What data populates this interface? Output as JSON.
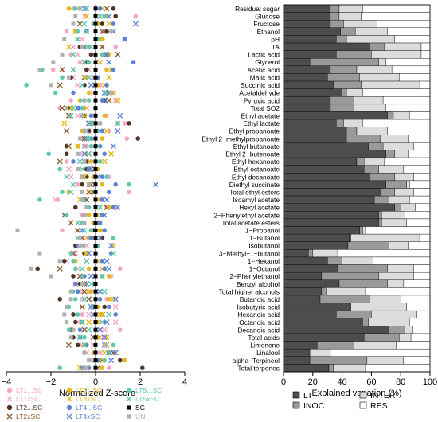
{
  "chart_data": [
    {
      "type": "scatter",
      "title": "",
      "xlabel": "Normalized Z-score",
      "ylabel": "",
      "xlim": [
        -4,
        4
      ],
      "xticks": [
        -4,
        -2,
        0,
        2,
        4
      ],
      "reference_line": 0,
      "rows": [
        "Residual sugar",
        "Glucose",
        "Fructose",
        "Ethanol",
        "pH",
        "TA",
        "Lactic acid",
        "Glycerol",
        "Acetic acid",
        "Malic acid",
        "Succinic acid",
        "Acetaldehyde",
        "Pyruvic acid",
        "Total SO2",
        "Ethyl acetate",
        "Ethyl lactate",
        "Ethyl propanoate",
        "Ethyl 2-methylpropanoate",
        "Ethyl butanoate",
        "Ethyl 2-butenoate",
        "Ethyl hexanoate",
        "Ethyl octanoate",
        "Ethyl decanoate",
        "Diethyl succinate",
        "Total ethyl esters",
        "Isoamyl acetate",
        "Hexyl acetate",
        "2-Phenylethyl acetate",
        "Total acetate esters",
        "1-Propanol",
        "1-Butanol",
        "Isobutanol",
        "3-Methyl-1-butanol",
        "1-Hexanol",
        "1-Octanol",
        "2-Phenylethanol",
        "Benzyl alcohol",
        "Total higher alcohols",
        "Butanoic acid",
        "Isobutyric acid",
        "Hexanoic acid",
        "Octanoic acid",
        "Decanoic acid",
        "Total acids",
        "Limonene",
        "Linalool",
        "alpha-Terpineol",
        "Total terpenes"
      ],
      "series": [
        {
          "name": "LT1...SC",
          "color": "#f4a6c4",
          "marker": "circle",
          "values": [
            -1.0,
            1.8,
            0.8,
            -1.3,
            0.3,
            0.9,
            -1.1,
            -0.7,
            -1.9,
            -0.1,
            0.2,
            0.8,
            -1.1,
            -1.6,
            0.5,
            1.3,
            0.6,
            1.4,
            -0.4,
            -0.7,
            -1.3,
            -0.3,
            0.6,
            -0.8,
            1.5,
            -1.7,
            0.5,
            -0.6,
            -0.1,
            -1.5,
            0.3,
            -0.5,
            -1.0,
            0.3,
            1.1,
            0.7,
            -0.1,
            -0.3,
            0.5,
            -1.3,
            -0.6,
            -0.7,
            1.1,
            0.4,
            -0.7,
            0.2,
            -0.2,
            0.6
          ]
        },
        {
          "name": "LT1xSC",
          "color": "#f4a6c4",
          "marker": "x",
          "values": [
            -0.8,
            -0.5,
            0.2,
            0.4,
            -0.6,
            -1.0,
            -0.8,
            -0.4,
            -0.3,
            -1.0,
            -0.8,
            -0.1,
            0.9,
            -0.4,
            -0.8,
            1.0,
            -0.3,
            -0.6,
            -0.5,
            -0.3,
            -0.4,
            -1.2,
            -1.1,
            -0.3,
            -0.6,
            -1.8,
            0.9,
            -0.5,
            -0.6,
            -0.8,
            -0.4,
            -0.4,
            -0.9,
            -1.3,
            -0.8,
            -0.7,
            -0.9,
            -0.6,
            -0.6,
            0.9,
            -0.3,
            0.9,
            0.4,
            0.2,
            -0.1,
            -0.4,
            0.1,
            -0.5
          ]
        },
        {
          "name": "LT2...SC",
          "color": "#4d3425",
          "marker": "circle",
          "values": [
            0.8,
            0.9,
            0.3,
            0.5,
            0.3,
            -0.7,
            -0.2,
            -0.4,
            -0.4,
            -1.1,
            -0.5,
            0.0,
            0.4,
            -1.2,
            -0.5,
            1.5,
            -0.3,
            1.9,
            -1.3,
            -1.3,
            -0.4,
            -0.4,
            -0.4,
            -0.6,
            -1.2,
            -0.5,
            -0.9,
            -0.5,
            -0.6,
            -0.1,
            0.3,
            -0.9,
            -0.5,
            -1.4,
            -2.6,
            -1.0,
            -0.7,
            -0.8,
            -1.6,
            0.4,
            -1.0,
            -0.9,
            -1.1,
            -1.0,
            -0.8,
            0.6,
            1.1,
            2.1
          ]
        },
        {
          "name": "LT2xSC",
          "color": "#8b5a2b",
          "marker": "x",
          "values": [
            0.5,
            0.2,
            -0.7,
            0.3,
            -0.8,
            0.3,
            1.0,
            -0.5,
            -1.5,
            -0.5,
            -1.6,
            0.6,
            0.6,
            -1.5,
            -1.2,
            -0.3,
            -1.3,
            -0.5,
            -1.2,
            -0.3,
            -1.6,
            -0.2,
            -0.6,
            -0.2,
            -0.3,
            -0.4,
            0.5,
            -1.4,
            -1.1,
            -0.8,
            -0.6,
            -0.6,
            -1.0,
            -0.4,
            -1.6,
            -0.7,
            -0.5,
            -0.5,
            -0.3,
            -0.6,
            0.3,
            -0.6,
            -0.5,
            -0.1,
            -1.2,
            0.8,
            0.3,
            0.1
          ]
        },
        {
          "name": "LT3...SC",
          "color": "#e6b818",
          "marker": "circle",
          "values": [
            -1.2,
            0.5,
            0.1,
            -0.9,
            0.3,
            -0.5,
            0.6,
            -0.3,
            0.5,
            -0.4,
            0.1,
            -0.3,
            -0.7,
            -0.5,
            0.4,
            -0.2,
            -0.6,
            0.3,
            -0.8,
            -0.4,
            -0.2,
            0.1,
            -0.1,
            0.3,
            -1.2,
            0.2,
            0.6,
            -0.3,
            -0.1,
            0.2,
            -0.3,
            -0.7,
            -0.4,
            -0.9,
            -0.3,
            0.6,
            -0.5,
            -0.2,
            0.6,
            0.1,
            0.3,
            0.1,
            -1.0,
            0.1,
            -0.5,
            -0.1,
            1.3,
            0.3
          ]
        },
        {
          "name": "LT3xSC",
          "color": "#e6b818",
          "marker": "x",
          "values": [
            0.3,
            -0.4,
            0.6,
            -0.9,
            0.3,
            -1.2,
            0.4,
            0.2,
            0.7,
            0.6,
            0.4,
            0.8,
            1.0,
            -1.1,
            -0.5,
            -1.4,
            0.5,
            -0.4,
            -0.8,
            0.7,
            0.4,
            -0.6,
            -0.5,
            -0.3,
            -0.2,
            -0.7,
            0.2,
            0.1,
            0.1,
            0.3,
            -0.2,
            0.8,
            -0.4,
            0.1,
            0.3,
            0.3,
            -0.6,
            -0.3,
            0.8,
            -0.1,
            0.2,
            -0.3,
            0.2,
            0.5,
            0.5,
            0.4,
            0.2,
            -0.7
          ]
        },
        {
          "name": "LT4...SC",
          "color": "#5b84d6",
          "marker": "circle",
          "values": [
            0.2,
            0.4,
            0.8,
            -0.4,
            1.3,
            -0.6,
            0.5,
            1.7,
            0.8,
            0.1,
            0.5,
            -1.0,
            0.3,
            -0.8,
            -0.2,
            0.2,
            0.3,
            -0.2,
            0.2,
            0.4,
            -1.0,
            -0.3,
            0.3,
            0.9,
            0.6,
            0.3,
            0.8,
            0.3,
            0.2,
            0.4,
            -0.2,
            -0.8,
            0.7,
            0.3,
            0.4,
            -0.5,
            -0.9,
            -0.8,
            0.2,
            0.6,
            0.9,
            0.4,
            -0.7,
            -0.7,
            -0.4,
            0.6,
            0.1,
            -0.3
          ]
        },
        {
          "name": "LT4xSC",
          "color": "#5b84d6",
          "marker": "x",
          "values": [
            -0.5,
            0.6,
            1.8,
            0.8,
            1.3,
            -0.5,
            0.5,
            0.6,
            -1.0,
            -0.3,
            -0.2,
            0.4,
            0.4,
            -0.8,
            1.1,
            -0.3,
            1.0,
            -0.4,
            0.8,
            -0.5,
            -0.5,
            -0.3,
            0.1,
            2.7,
            -0.1,
            0.5,
            1.0,
            0.4,
            0.2,
            -0.6,
            0.2,
            0.7,
            -0.3,
            0.5,
            0.6,
            -0.2,
            -0.4,
            0.2,
            0.9,
            -0.2,
            -0.1,
            0.5,
            0.2,
            0.4,
            0.4,
            0.9,
            0.7,
            -0.6
          ]
        },
        {
          "name": "LT5...SC",
          "color": "#5ec9b0",
          "marker": "circle",
          "values": [
            -0.9,
            0.4,
            -0.1,
            -0.8,
            0.1,
            -0.3,
            0.3,
            -0.3,
            -2.4,
            -1.5,
            -3.1,
            -1.8,
            -0.3,
            -0.6,
            -0.6,
            1.0,
            0.1,
            -0.3,
            -0.2,
            -2.1,
            0.2,
            -1.6,
            0.5,
            1.5,
            -1.5,
            -2.5,
            -0.3,
            -1.3,
            -0.6,
            -0.2,
            0.8,
            0.1,
            -1.1,
            -1.0,
            -0.9,
            0.3,
            -0.1,
            -1.0,
            -0.9,
            -1.2,
            -0.8,
            -0.6,
            -1.2,
            -0.5,
            0.8,
            -0.5,
            0.4,
            -1.6
          ]
        },
        {
          "name": "LT5xSC",
          "color": "#5ec9b0",
          "marker": "x",
          "values": [
            -0.4,
            0.2,
            -0.5,
            -0.4,
            -0.8,
            -0.2,
            -1.0,
            -0.5,
            -1.0,
            -0.3,
            -0.6,
            0.5,
            -0.6,
            -1.0,
            -1.1,
            -0.2,
            -0.4,
            -0.3,
            0.1,
            -0.3,
            -0.7,
            -0.6,
            -1.3,
            -1.0,
            -1.1,
            -0.5,
            0.2,
            -0.5,
            -0.8,
            -0.5,
            -0.8,
            -0.6,
            0.8,
            -0.4,
            -0.6,
            -0.6,
            -0.2,
            0.4,
            -0.5,
            -0.1,
            0.6,
            0.3,
            -0.3,
            -0.7,
            -0.5,
            0.6,
            0.0,
            -0.4
          ]
        },
        {
          "name": "UN",
          "color": "#b0b0b0",
          "marker": "square",
          "values": [
            -0.7,
            -0.9,
            -1.0,
            0.7,
            -1.4,
            -0.6,
            -1.5,
            -1.9,
            -2.5,
            -1.2,
            -2.0,
            0.7,
            -0.5,
            -1.3,
            -0.6,
            0.2,
            -0.5,
            -0.7,
            -0.5,
            -0.8,
            -0.5,
            -0.8,
            -0.6,
            -0.3,
            -0.6,
            -0.6,
            -0.4,
            -0.5,
            -0.5,
            -3.5,
            -0.7,
            -0.7,
            -2.5,
            -1.6,
            -2.9,
            -2.0,
            -0.6,
            -1.1,
            -1.1,
            -1.3,
            -1.4,
            -1.3,
            -1.0,
            -1.1,
            0.4,
            -0.5,
            -0.3,
            -0.4
          ]
        },
        {
          "name": "SC",
          "color": "#000000",
          "marker": "square",
          "values": [
            0,
            0,
            0,
            0,
            0,
            0,
            0,
            0,
            0,
            0,
            0,
            0,
            0,
            0,
            0,
            0,
            0,
            0,
            0,
            0,
            0,
            0,
            0,
            0,
            0,
            0,
            0,
            0,
            0,
            0,
            0,
            0,
            0,
            0,
            0,
            0,
            0,
            0,
            0,
            0,
            0,
            0,
            0,
            0,
            0,
            0,
            0,
            0
          ]
        }
      ],
      "legend": [
        {
          "name": "LT1...SC",
          "color": "#f4a6c4",
          "marker": "circle"
        },
        {
          "name": "LT1xSC",
          "color": "#f4a6c4",
          "marker": "x"
        },
        {
          "name": "LT2...SC",
          "color": "#4d3425",
          "marker": "circle"
        },
        {
          "name": "LT2xSC",
          "color": "#8b5a2b",
          "marker": "x"
        },
        {
          "name": "LT3...SC",
          "color": "#e6b818",
          "marker": "circle"
        },
        {
          "name": "LT3xSC",
          "color": "#e6b818",
          "marker": "x"
        },
        {
          "name": "LT4...SC",
          "color": "#5b84d6",
          "marker": "circle"
        },
        {
          "name": "LT4xSC",
          "color": "#5b84d6",
          "marker": "x"
        },
        {
          "name": "LT5...SC",
          "color": "#5ec9b0",
          "marker": "circle"
        },
        {
          "name": "LT5xSC",
          "color": "#5ec9b0",
          "marker": "x"
        },
        {
          "name": "SC",
          "color": "#000000",
          "marker": "square"
        },
        {
          "name": "UN",
          "color": "#b0b0b0",
          "marker": "square"
        }
      ],
      "legend_placement": "bottom"
    },
    {
      "type": "bar",
      "stacked": true,
      "orientation": "horizontal",
      "title": "",
      "xlabel": "Explained variation (%)",
      "ylabel": "",
      "xlim": [
        0,
        100
      ],
      "xticks": [
        0,
        20,
        40,
        60,
        80,
        100
      ],
      "categories": [
        "Residual sugar",
        "Glucose",
        "Fructose",
        "Ethanol",
        "pH",
        "TA",
        "Lactic acid",
        "Glycerol",
        "Acetic acid",
        "Malic acid",
        "Succinic acid",
        "Acetaldehyde",
        "Pyruvic acid",
        "Total SO2",
        "Ethyl acetate",
        "Ethyl lactate",
        "Ethyl propanoate",
        "Ethyl 2−methylpropanoate",
        "Ethyl butanoate",
        "Ethyl 2−butenoate",
        "Ethyl hexanoate",
        "Ethyl octanoate",
        "Ethyl decanoate",
        "Diethyl succinate",
        "Total ethyl esters",
        "Isoamyl acetate",
        "Hexyl acetate",
        "2−Phenylethyl acetate",
        "Total acetate esters",
        "1−Propanol",
        "1−Butanol",
        "Isobutanol",
        "3−Methyl−1−butanol",
        "1−Hexanol",
        "1−Octanol",
        "2−Phenylethanol",
        "Benzyl alcohol",
        "Total higher alcohols",
        "Butanoic acid",
        "Isobutyric acid",
        "Hexanoic acid",
        "Octanoic acid",
        "Decanoic acid",
        "Total acids",
        "Limonene",
        "Linalool",
        "alpha−Terpineol",
        "Total terpenes"
      ],
      "series": [
        {
          "name": "LT",
          "color": "#4d4d4d",
          "values": [
            32,
            32,
            32,
            39,
            36,
            59,
            36,
            18,
            32,
            30,
            34,
            40,
            32,
            32,
            71,
            36,
            43,
            43,
            58,
            70,
            50,
            55,
            59,
            70,
            66,
            62,
            76,
            65,
            65,
            52,
            45,
            44,
            17,
            30,
            37,
            26,
            38,
            26,
            25,
            46,
            36,
            54,
            72,
            55,
            23,
            18,
            18,
            31
          ]
        },
        {
          "name": "INOC",
          "color": "#9a9a9a",
          "values": [
            6,
            6,
            9,
            10,
            7,
            10,
            24,
            47,
            18,
            22,
            19,
            3,
            16,
            16,
            4,
            5,
            7,
            23,
            10,
            6,
            5,
            10,
            17,
            14,
            10,
            10,
            4,
            2,
            2,
            2,
            1,
            28,
            3,
            10,
            34,
            39,
            33,
            3,
            34,
            0,
            24,
            4,
            11,
            24,
            25,
            0,
            39,
            3
          ]
        },
        {
          "name": "INTER",
          "color": "#dcdcdc",
          "values": [
            16,
            15,
            23,
            22,
            33,
            25,
            34,
            5,
            24,
            27,
            40,
            11,
            20,
            22,
            11,
            13,
            21,
            19,
            21,
            9,
            14,
            17,
            13,
            2,
            13,
            14,
            10,
            16,
            17,
            2,
            47,
            13,
            17,
            21,
            18,
            24,
            11,
            27,
            21,
            38,
            31,
            28,
            5,
            8,
            29,
            14,
            25,
            22
          ]
        },
        {
          "name": "RES",
          "color": "#ffffff",
          "values": [
            46,
            47,
            36,
            29,
            24,
            6,
            6,
            30,
            26,
            21,
            7,
            46,
            32,
            30,
            14,
            46,
            29,
            15,
            11,
            15,
            31,
            18,
            11,
            14,
            11,
            14,
            10,
            17,
            16,
            44,
            7,
            15,
            63,
            39,
            11,
            11,
            18,
            44,
            20,
            16,
            9,
            14,
            12,
            13,
            23,
            68,
            18,
            44
          ]
        }
      ],
      "legend": [
        {
          "name": "LT",
          "color": "#4d4d4d"
        },
        {
          "name": "INOC",
          "color": "#9a9a9a"
        },
        {
          "name": "INTER",
          "color": "#dcdcdc"
        },
        {
          "name": "RES",
          "color": "#ffffff"
        }
      ],
      "legend_placement": "bottom"
    }
  ]
}
